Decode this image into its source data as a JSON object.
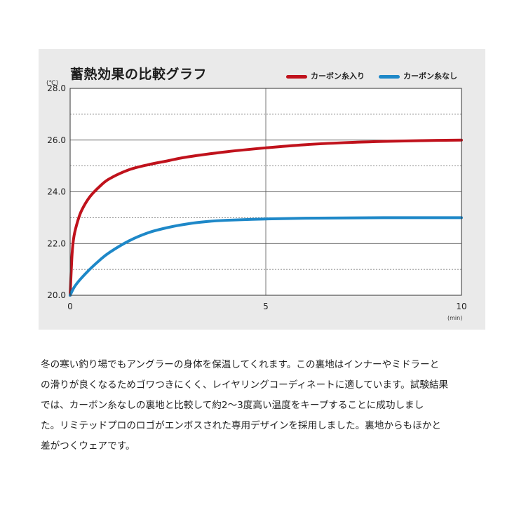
{
  "chart_data": {
    "type": "line",
    "title": "蓄熱効果の比較グラフ",
    "ylabel": "(℃)",
    "xlabel": "(min)",
    "xlim": [
      0,
      10
    ],
    "ylim": [
      20,
      28
    ],
    "x_ticks": [
      "0",
      "5",
      "10"
    ],
    "y_ticks": [
      "20.0",
      "22.0",
      "24.0",
      "26.0",
      "28.0"
    ],
    "legend_position": "top-right",
    "grid": true,
    "series": [
      {
        "name": "カーボン糸入り",
        "color": "#c0121c",
        "x": [
          0,
          0.05,
          0.1,
          0.2,
          0.3,
          0.5,
          0.75,
          1,
          1.5,
          2,
          2.5,
          3,
          4,
          5,
          6,
          7,
          8,
          9,
          10
        ],
        "y": [
          20.0,
          21.6,
          22.3,
          22.9,
          23.3,
          23.8,
          24.2,
          24.5,
          24.85,
          25.05,
          25.2,
          25.35,
          25.55,
          25.7,
          25.82,
          25.9,
          25.95,
          25.98,
          26.0
        ]
      },
      {
        "name": "カーボン糸なし",
        "color": "#1e88c8",
        "x": [
          0,
          0.1,
          0.25,
          0.5,
          0.75,
          1,
          1.5,
          2,
          2.5,
          3,
          3.5,
          4,
          5,
          6,
          7,
          8,
          9,
          10
        ],
        "y": [
          20.0,
          20.3,
          20.6,
          21.0,
          21.35,
          21.65,
          22.1,
          22.42,
          22.62,
          22.76,
          22.85,
          22.9,
          22.95,
          22.98,
          22.99,
          23.0,
          23.0,
          23.0
        ]
      }
    ]
  },
  "description": {
    "lines": [
      "冬の寒い釣り場でもアングラーの身体を保温してくれます。この裏地はインナーやミドラーと",
      "の滑りが良くなるためゴワつきにくく、レイヤリングコーディネートに適しています。試験結果",
      "では、カーボン糸なしの裏地と比較して約2〜3度高い温度をキープすることに成功しまし",
      "た。リミテッドプロのロゴがエンボスされた専用デザインを採用しました。裏地からもほかと",
      "差がつくウェアです。"
    ]
  }
}
